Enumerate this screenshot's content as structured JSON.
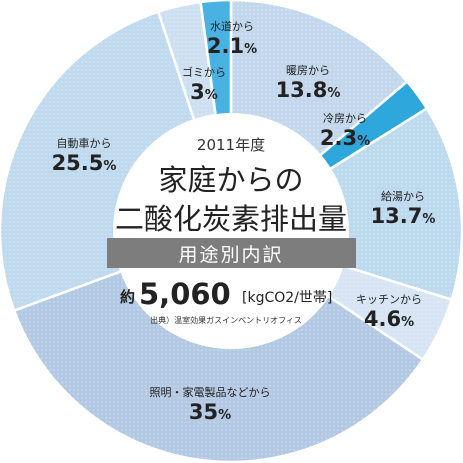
{
  "chart_data": {
    "type": "pie",
    "start_from": "top, clockwise",
    "center": {
      "year": "2011年度",
      "title_line1": "家庭からの",
      "title_line2": "二酸化炭素排出量",
      "subtitle": "用途別内訳",
      "total_prefix": "約",
      "total_value": "5,060",
      "total_unit": "[kgCO2/世帯]",
      "source": "出典）温室効果ガスインベントリオフィス"
    },
    "slices": [
      {
        "label": "暖房から",
        "value_text": "13.8",
        "unit": "%",
        "value": 13.8,
        "color": "#c3d7ec",
        "accent": false
      },
      {
        "label": "冷房から",
        "value_text": "2.3",
        "unit": "%",
        "value": 2.3,
        "color": "#2ea7dc",
        "accent": true
      },
      {
        "label": "給湯から",
        "value_text": "13.7",
        "unit": "%",
        "value": 13.7,
        "color": "#bcd9ee",
        "accent": false
      },
      {
        "label": "キッチンから",
        "value_text": "4.6",
        "unit": "%",
        "value": 4.6,
        "color": "#d6e4f3",
        "accent": false
      },
      {
        "label": "照明・家電製品などから",
        "value_text": "35",
        "unit": "%",
        "value": 35,
        "color": "#b3c9e3",
        "accent": false
      },
      {
        "label": "自動車から",
        "value_text": "25.5",
        "unit": "%",
        "value": 25.5,
        "color": "#bfd9ee",
        "accent": false
      },
      {
        "label": "ゴミから",
        "value_text": "3",
        "unit": "%",
        "value": 3,
        "color": "#cddff0",
        "accent": false
      },
      {
        "label": "水道から",
        "value_text": "2.1",
        "unit": "%",
        "value": 2.1,
        "color": "#49b2e2",
        "accent": true
      }
    ]
  }
}
